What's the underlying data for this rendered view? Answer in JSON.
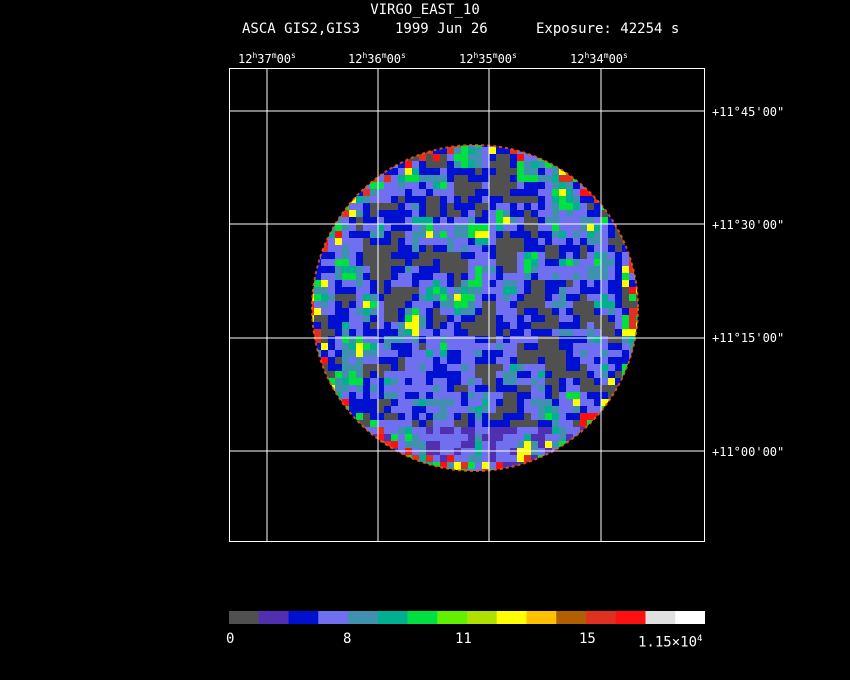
{
  "header": {
    "title": "VIRGO_EAST_10",
    "instrument": "ASCA GIS2,GIS3",
    "date": "1999 Jun 26",
    "exposure": "Exposure: 42254 s"
  },
  "axes": {
    "ra_ticks": [
      {
        "h": "12",
        "m": "37",
        "s": "00"
      },
      {
        "h": "12",
        "m": "36",
        "s": "00"
      },
      {
        "h": "12",
        "m": "35",
        "s": "00"
      },
      {
        "h": "12",
        "m": "34",
        "s": "00"
      }
    ],
    "dec_ticks": [
      "+11°45'00\"",
      "+11°30'00\"",
      "+11°15'00\"",
      "+11°00'00\""
    ]
  },
  "colorbar": {
    "colors": [
      "#505050",
      "#5030b0",
      "#0010d0",
      "#6f6ff0",
      "#4090b0",
      "#00b090",
      "#00e040",
      "#60f000",
      "#b0e000",
      "#ffff00",
      "#ffc000",
      "#b06000",
      "#e03020",
      "#ff1010",
      "#e0e0e0",
      "#ffffff"
    ],
    "labels": [
      "0",
      "8",
      "11",
      "15",
      "1.15×10"
    ],
    "exponent": "4"
  },
  "image": {
    "description_colors": {
      "background_fill": "#000000",
      "grid": "#ffffff"
    }
  }
}
